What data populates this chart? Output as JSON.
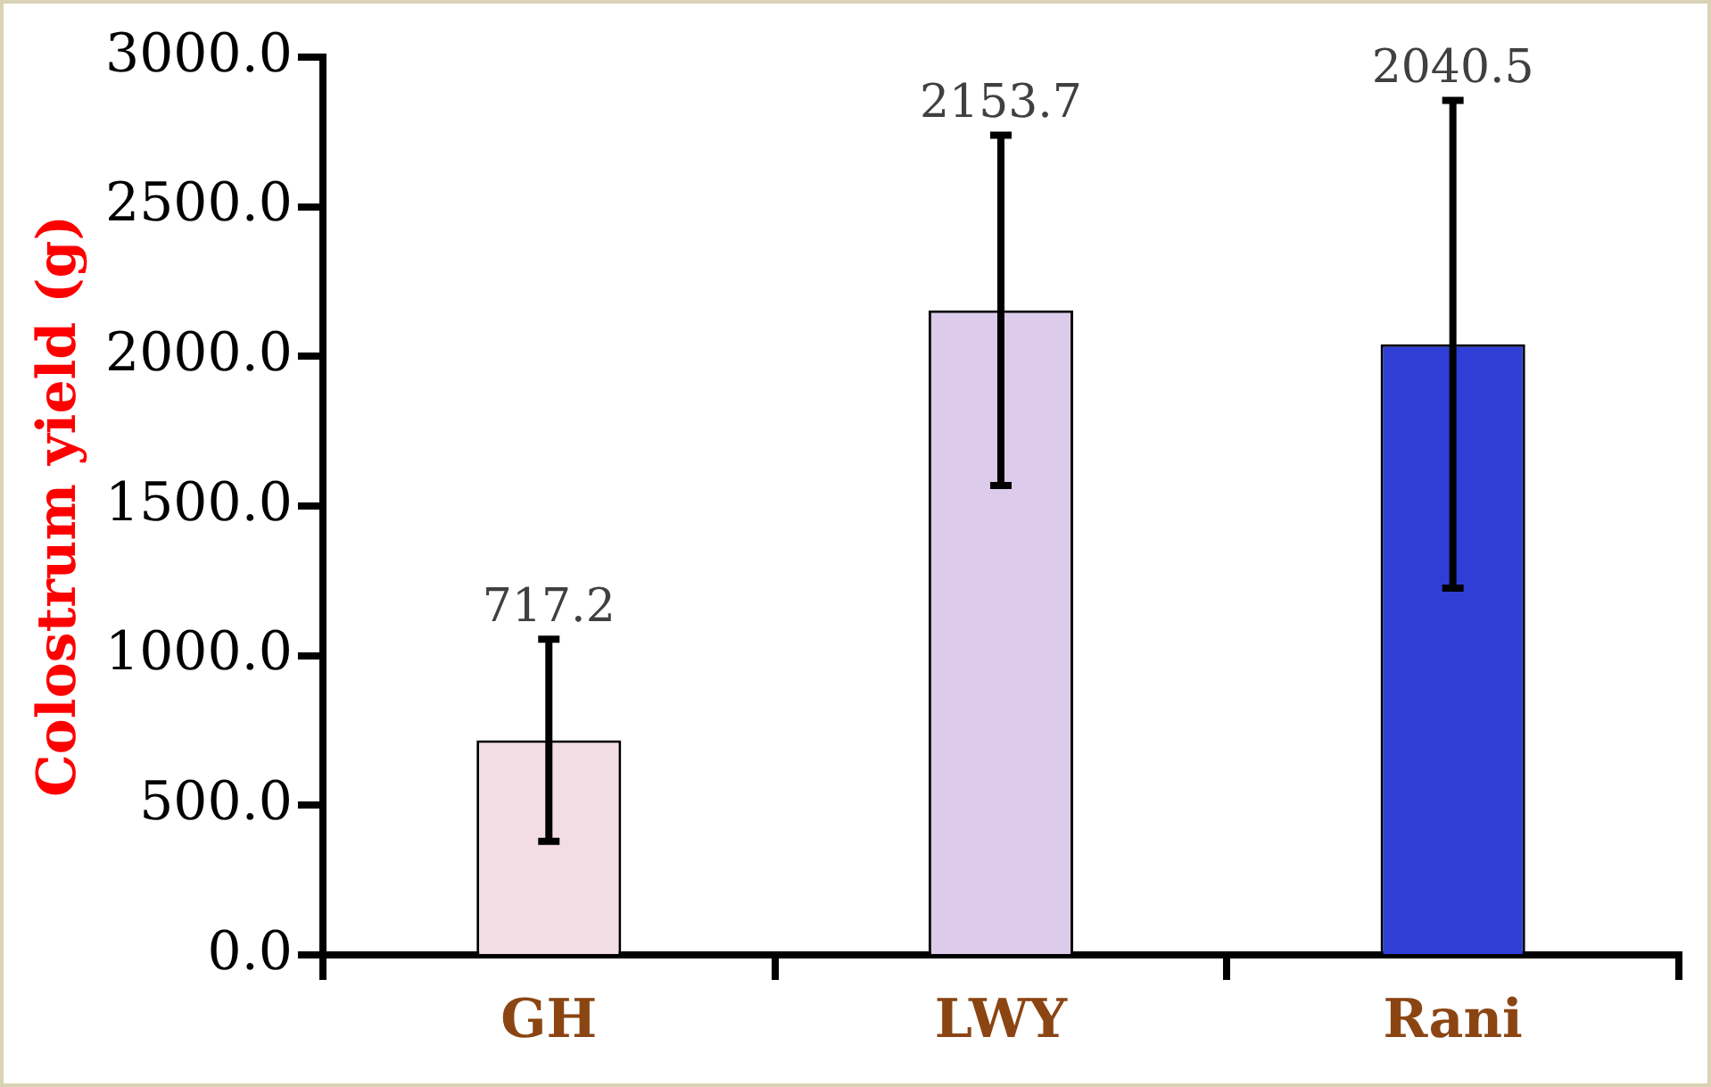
{
  "chart_data": {
    "type": "bar",
    "ylabel": "Colostrum yield (g)",
    "categories": [
      "GH",
      "LWY",
      "Rani"
    ],
    "values": [
      717.2,
      2153.7,
      2040.5
    ],
    "colors": [
      "#f3dde4",
      "#dccbea",
      "#2f3fd6"
    ],
    "errors": [
      338,
      585,
      815
    ],
    "ylim": [
      0,
      3000
    ],
    "yticks": [
      {
        "value": 0,
        "label": "0.0"
      },
      {
        "value": 500,
        "label": "500.0"
      },
      {
        "value": 1000,
        "label": "1000.0"
      },
      {
        "value": 1500,
        "label": "1500.0"
      },
      {
        "value": 2000,
        "label": "2000.0"
      },
      {
        "value": 2500,
        "label": "2500.0"
      },
      {
        "value": 3000,
        "label": "3000.0"
      }
    ],
    "annotations": [
      {
        "text": "717.2",
        "x": "GH",
        "y": 1055
      },
      {
        "text": "2153.7",
        "x": "LWY",
        "y": 2738
      },
      {
        "text": "2040.5",
        "x": "Rani",
        "y": 2855
      }
    ],
    "grid": false,
    "legend": false
  }
}
